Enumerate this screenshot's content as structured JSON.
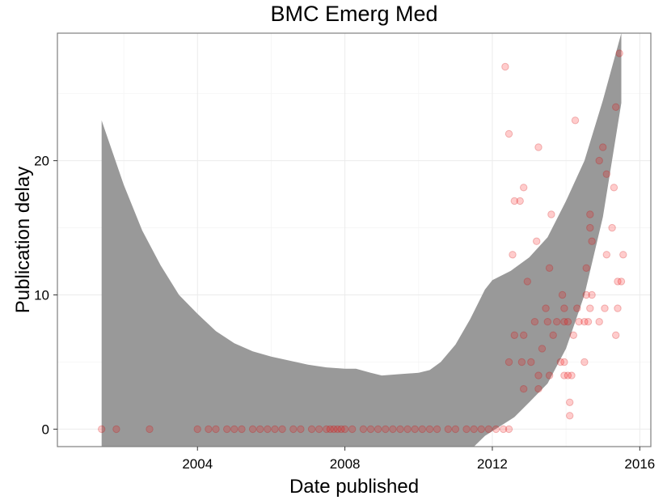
{
  "chart_data": {
    "type": "scatter",
    "title": "BMC Emerg Med",
    "xlabel": "Date published",
    "ylabel": "Publication delay",
    "xlim": [
      2000.2,
      2016.3
    ],
    "ylim": [
      -1.3,
      29.5
    ],
    "x_ticks": [
      2004,
      2008,
      2012,
      2016
    ],
    "y_ticks": [
      0,
      10,
      20
    ],
    "grid": true,
    "legend": "none",
    "colors": {
      "points": "#ff0000",
      "band": "#999999"
    },
    "points": [
      [
        2001.4,
        0
      ],
      [
        2001.8,
        0
      ],
      [
        2002.7,
        0
      ],
      [
        2004.0,
        0
      ],
      [
        2004.3,
        0
      ],
      [
        2004.5,
        0
      ],
      [
        2004.8,
        0
      ],
      [
        2005.0,
        0
      ],
      [
        2005.2,
        0
      ],
      [
        2005.5,
        0
      ],
      [
        2005.7,
        0
      ],
      [
        2005.9,
        0
      ],
      [
        2006.1,
        0
      ],
      [
        2006.3,
        0
      ],
      [
        2006.6,
        0
      ],
      [
        2006.8,
        0
      ],
      [
        2007.1,
        0
      ],
      [
        2007.3,
        0
      ],
      [
        2007.5,
        0
      ],
      [
        2007.6,
        0
      ],
      [
        2007.7,
        0
      ],
      [
        2007.8,
        0
      ],
      [
        2007.9,
        0
      ],
      [
        2008.0,
        0
      ],
      [
        2008.2,
        0
      ],
      [
        2008.5,
        0
      ],
      [
        2008.7,
        0
      ],
      [
        2008.9,
        0
      ],
      [
        2009.1,
        0
      ],
      [
        2009.3,
        0
      ],
      [
        2009.5,
        0
      ],
      [
        2009.7,
        0
      ],
      [
        2009.9,
        0
      ],
      [
        2010.1,
        0
      ],
      [
        2010.3,
        0
      ],
      [
        2010.5,
        0
      ],
      [
        2010.8,
        0
      ],
      [
        2011.0,
        0
      ],
      [
        2011.3,
        0
      ],
      [
        2011.5,
        0
      ],
      [
        2011.7,
        0
      ],
      [
        2011.9,
        0
      ],
      [
        2012.1,
        0
      ],
      [
        2012.3,
        0
      ],
      [
        2012.45,
        0
      ],
      [
        2012.35,
        27
      ],
      [
        2012.45,
        22
      ],
      [
        2012.45,
        5
      ],
      [
        2012.55,
        13
      ],
      [
        2012.6,
        7
      ],
      [
        2012.6,
        17
      ],
      [
        2012.75,
        17
      ],
      [
        2012.8,
        5
      ],
      [
        2012.85,
        18
      ],
      [
        2012.85,
        3
      ],
      [
        2012.95,
        11
      ],
      [
        2012.85,
        7
      ],
      [
        2013.05,
        5
      ],
      [
        2013.15,
        8
      ],
      [
        2013.2,
        14
      ],
      [
        2013.25,
        21
      ],
      [
        2013.25,
        4
      ],
      [
        2013.25,
        3
      ],
      [
        2013.35,
        6
      ],
      [
        2013.45,
        9
      ],
      [
        2013.5,
        8
      ],
      [
        2013.55,
        12
      ],
      [
        2013.55,
        4
      ],
      [
        2013.6,
        16
      ],
      [
        2013.65,
        7
      ],
      [
        2013.75,
        8
      ],
      [
        2013.85,
        5
      ],
      [
        2013.9,
        10
      ],
      [
        2013.95,
        4
      ],
      [
        2013.95,
        9
      ],
      [
        2013.95,
        5
      ],
      [
        2013.95,
        8
      ],
      [
        2014.05,
        4
      ],
      [
        2014.05,
        8
      ],
      [
        2014.1,
        2
      ],
      [
        2014.1,
        1
      ],
      [
        2014.15,
        4
      ],
      [
        2014.2,
        7
      ],
      [
        2014.25,
        23
      ],
      [
        2014.3,
        9
      ],
      [
        2014.35,
        8
      ],
      [
        2014.5,
        8
      ],
      [
        2014.5,
        5
      ],
      [
        2014.55,
        12
      ],
      [
        2014.55,
        10
      ],
      [
        2014.6,
        8
      ],
      [
        2014.65,
        9
      ],
      [
        2014.65,
        16
      ],
      [
        2014.65,
        15
      ],
      [
        2014.7,
        10
      ],
      [
        2014.7,
        14
      ],
      [
        2014.9,
        8
      ],
      [
        2014.9,
        20
      ],
      [
        2015.0,
        21
      ],
      [
        2015.05,
        9
      ],
      [
        2015.1,
        19
      ],
      [
        2015.1,
        13
      ],
      [
        2015.25,
        15
      ],
      [
        2015.3,
        18
      ],
      [
        2015.35,
        7
      ],
      [
        2015.35,
        24
      ],
      [
        2015.4,
        9
      ],
      [
        2015.4,
        11
      ],
      [
        2015.45,
        28
      ],
      [
        2015.5,
        11
      ],
      [
        2015.55,
        13
      ]
    ],
    "band": {
      "upper": [
        [
          2001.4,
          23
        ],
        [
          2002.0,
          18.2
        ],
        [
          2002.5,
          14.8
        ],
        [
          2003.0,
          12.2
        ],
        [
          2003.5,
          10
        ],
        [
          2004.0,
          8.6
        ],
        [
          2004.5,
          7.3
        ],
        [
          2005.0,
          6.4
        ],
        [
          2005.5,
          5.8
        ],
        [
          2006.0,
          5.4
        ],
        [
          2006.5,
          5.1
        ],
        [
          2007.0,
          4.8
        ],
        [
          2007.5,
          4.6
        ],
        [
          2008.0,
          4.5
        ],
        [
          2008.3,
          4.5
        ],
        [
          2008.7,
          4.2
        ],
        [
          2009.0,
          4.0
        ],
        [
          2009.5,
          4.1
        ],
        [
          2010.0,
          4.2
        ],
        [
          2010.3,
          4.4
        ],
        [
          2010.6,
          5.0
        ],
        [
          2011.0,
          6.3
        ],
        [
          2011.4,
          8.2
        ],
        [
          2011.8,
          10.4
        ],
        [
          2012.0,
          11.1
        ],
        [
          2012.5,
          11.8
        ],
        [
          2013.0,
          12.8
        ],
        [
          2013.5,
          14.3
        ],
        [
          2014.0,
          17.0
        ],
        [
          2014.5,
          20.0
        ],
        [
          2015.0,
          24.5
        ],
        [
          2015.5,
          29.5
        ]
      ],
      "lower": [
        [
          2001.4,
          -1.3
        ],
        [
          2011.5,
          -1.3
        ],
        [
          2011.8,
          -0.5
        ],
        [
          2012.2,
          0.2
        ],
        [
          2012.6,
          0.9
        ],
        [
          2013.0,
          2.0
        ],
        [
          2013.5,
          3.4
        ],
        [
          2014.0,
          6.0
        ],
        [
          2014.5,
          10.0
        ],
        [
          2015.0,
          15.8
        ],
        [
          2015.5,
          24.3
        ]
      ]
    }
  }
}
